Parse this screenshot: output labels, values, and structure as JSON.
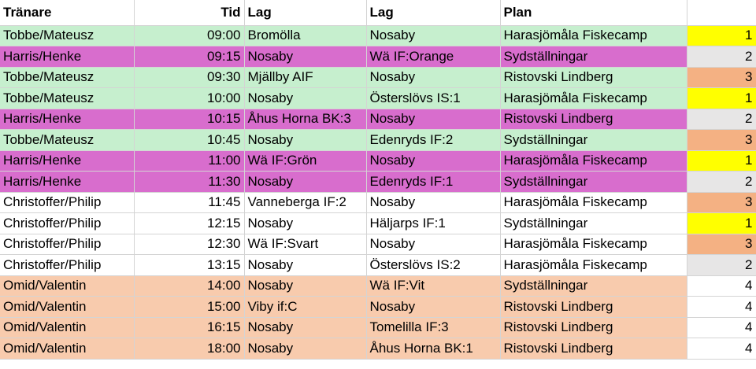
{
  "headers": [
    "Tränare",
    "Tid",
    "Lag",
    "Lag",
    "Plan",
    ""
  ],
  "rows": [
    {
      "trainer": "Tobbe/Mateusz",
      "time": "09:00",
      "team1": "Bromölla",
      "team2": "Nosaby",
      "plan": "Harasjömåla Fiskecamp",
      "rank": "1",
      "group": "green",
      "rankColor": "yellow"
    },
    {
      "trainer": "Harris/Henke",
      "time": "09:15",
      "team1": "Nosaby",
      "team2": "Wä IF:Orange",
      "plan": "Sydställningar",
      "rank": "2",
      "group": "purple",
      "rankColor": "grey"
    },
    {
      "trainer": "Tobbe/Mateusz",
      "time": "09:30",
      "team1": "Mjällby AIF",
      "team2": "Nosaby",
      "plan": "Ristovski Lindberg",
      "rank": "3",
      "group": "green",
      "rankColor": "orange"
    },
    {
      "trainer": "Tobbe/Mateusz",
      "time": "10:00",
      "team1": "Nosaby",
      "team2": "Österslövs IS:1",
      "plan": "Harasjömåla Fiskecamp",
      "rank": "1",
      "group": "green",
      "rankColor": "yellow"
    },
    {
      "trainer": "Harris/Henke",
      "time": "10:15",
      "team1": "Åhus Horna BK:3",
      "team2": "Nosaby",
      "plan": "Ristovski Lindberg",
      "rank": "2",
      "group": "purple",
      "rankColor": "grey"
    },
    {
      "trainer": "Tobbe/Mateusz",
      "time": "10:45",
      "team1": "Nosaby",
      "team2": "Edenryds IF:2",
      "plan": "Sydställningar",
      "rank": "3",
      "group": "green",
      "rankColor": "orange"
    },
    {
      "trainer": "Harris/Henke",
      "time": "11:00",
      "team1": "Wä IF:Grön",
      "team2": "Nosaby",
      "plan": "Harasjömåla Fiskecamp",
      "rank": "1",
      "group": "purple",
      "rankColor": "yellow"
    },
    {
      "trainer": "Harris/Henke",
      "time": "11:30",
      "team1": "Nosaby",
      "team2": "Edenryds IF:1",
      "plan": "Sydställningar",
      "rank": "2",
      "group": "purple",
      "rankColor": "grey"
    },
    {
      "trainer": "Christoffer/Philip",
      "time": "11:45",
      "team1": "Vanneberga IF:2",
      "team2": "Nosaby",
      "plan": "Harasjömåla Fiskecamp",
      "rank": "3",
      "group": "white",
      "rankColor": "orange"
    },
    {
      "trainer": "Christoffer/Philip",
      "time": "12:15",
      "team1": "Nosaby",
      "team2": "Häljarps IF:1",
      "plan": "Sydställningar",
      "rank": "1",
      "group": "white",
      "rankColor": "yellow"
    },
    {
      "trainer": "Christoffer/Philip",
      "time": "12:30",
      "team1": "Wä IF:Svart",
      "team2": "Nosaby",
      "plan": "Harasjömåla Fiskecamp",
      "rank": "3",
      "group": "white",
      "rankColor": "orange"
    },
    {
      "trainer": "Christoffer/Philip",
      "time": "13:15",
      "team1": "Nosaby",
      "team2": "Österslövs IS:2",
      "plan": "Harasjömåla Fiskecamp",
      "rank": "2",
      "group": "white",
      "rankColor": "grey"
    },
    {
      "trainer": "Omid/Valentin",
      "time": "14:00",
      "team1": "Nosaby",
      "team2": "Wä IF:Vit",
      "plan": "Sydställningar",
      "rank": "4",
      "group": "peach",
      "rankColor": "none"
    },
    {
      "trainer": "Omid/Valentin",
      "time": "15:00",
      "team1": "Viby if:C",
      "team2": "Nosaby",
      "plan": "Ristovski Lindberg",
      "rank": "4",
      "group": "peach",
      "rankColor": "none"
    },
    {
      "trainer": "Omid/Valentin",
      "time": "16:15",
      "team1": "Nosaby",
      "team2": "Tomelilla IF:3",
      "plan": "Ristovski Lindberg",
      "rank": "4",
      "group": "peach",
      "rankColor": "none"
    },
    {
      "trainer": "Omid/Valentin",
      "time": "18:00",
      "team1": "Nosaby",
      "team2": "Åhus Horna BK:1",
      "plan": "Ristovski Lindberg",
      "rank": "4",
      "group": "peach",
      "rankColor": "none"
    }
  ],
  "colors": {
    "green": "#c6efce",
    "purple": "#d86dcd",
    "peach": "#f8cbad",
    "rank_yellow": "#ffff00",
    "rank_grey": "#e7e6e6",
    "rank_orange": "#f4b183"
  }
}
